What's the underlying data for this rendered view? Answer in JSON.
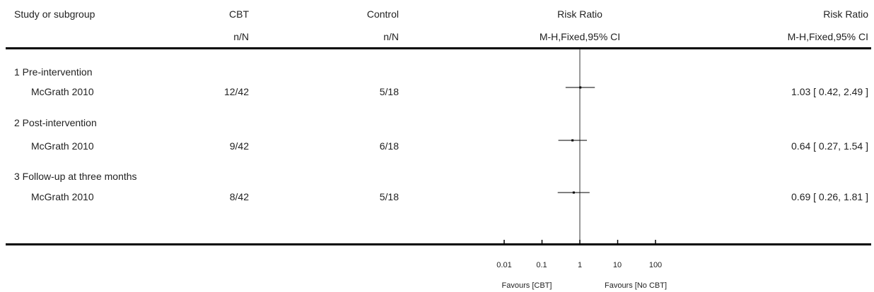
{
  "header": {
    "study_label": "Study or subgroup",
    "group1_name": "CBT",
    "group1_sub": "n/N",
    "group2_name": "Control",
    "group2_sub": "n/N",
    "effect_name": "Risk Ratio",
    "effect_sub": "M-H,Fixed,95% CI",
    "effect_name2": "Risk Ratio",
    "effect_sub2": "M-H,Fixed,95% CI"
  },
  "footer": {
    "favours_left": "Favours [CBT]",
    "favours_right": "Favours [No CBT]"
  },
  "chart_data": {
    "type": "scatter",
    "scale": "log",
    "x_ticks": [
      0.01,
      0.1,
      1,
      10,
      100
    ],
    "x_tick_labels": [
      "0.01",
      "0.1",
      "1",
      "10",
      "100"
    ],
    "reference_line": 1,
    "subgroups": [
      {
        "label": "1 Pre-intervention",
        "studies": [
          {
            "name": "McGrath 2010",
            "cbt": "12/42",
            "control": "5/18",
            "rr": 1.03,
            "lower": 0.42,
            "upper": 2.49,
            "ci_text": "1.03 [ 0.42, 2.49 ]"
          }
        ]
      },
      {
        "label": "2 Post-intervention",
        "studies": [
          {
            "name": "McGrath 2010",
            "cbt": "9/42",
            "control": "6/18",
            "rr": 0.64,
            "lower": 0.27,
            "upper": 1.54,
            "ci_text": "0.64 [ 0.27, 1.54 ]"
          }
        ]
      },
      {
        "label": "3 Follow-up at three months",
        "studies": [
          {
            "name": "McGrath 2010",
            "cbt": "8/42",
            "control": "5/18",
            "rr": 0.69,
            "lower": 0.26,
            "upper": 1.81,
            "ci_text": "0.69 [ 0.26, 1.81 ]"
          }
        ]
      }
    ]
  }
}
